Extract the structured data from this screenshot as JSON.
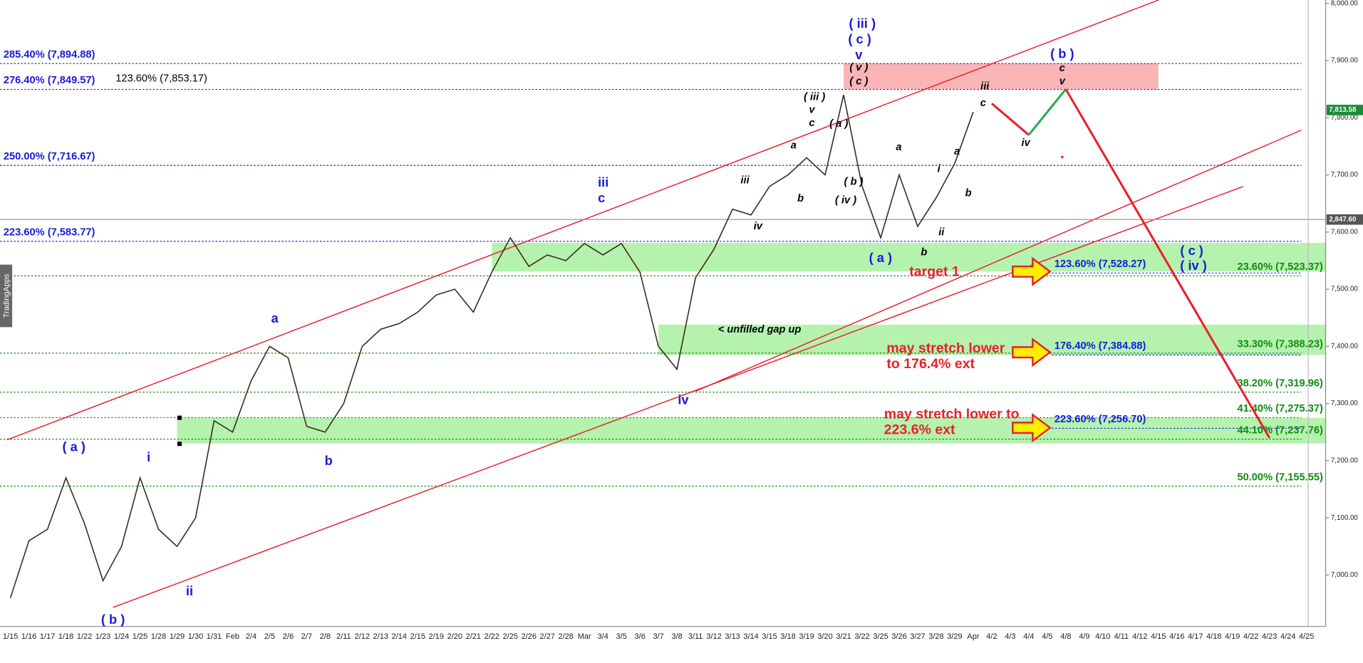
{
  "chart_data": {
    "type": "line",
    "categories": [
      "1/15",
      "1/16",
      "1/17",
      "1/18",
      "1/22",
      "1/23",
      "1/24",
      "1/25",
      "1/28",
      "1/29",
      "1/30",
      "1/31",
      "Feb",
      "2/4",
      "2/5",
      "2/6",
      "2/7",
      "2/8",
      "2/11",
      "2/12",
      "2/13",
      "2/14",
      "2/15",
      "2/19",
      "2/20",
      "2/21",
      "2/22",
      "2/25",
      "2/26",
      "2/27",
      "2/28",
      "Mar",
      "3/4",
      "3/5",
      "3/6",
      "3/7",
      "3/8",
      "3/11",
      "3/12",
      "3/13",
      "3/14",
      "3/15",
      "3/18",
      "3/19",
      "3/20",
      "3/21",
      "3/22",
      "3/25",
      "3/26",
      "3/27",
      "3/28",
      "3/29",
      "Apr",
      "4/2",
      "4/3",
      "4/4",
      "4/5",
      "4/8",
      "4/9",
      "4/10",
      "4/11",
      "4/12",
      "4/15",
      "4/16",
      "4/17",
      "4/18",
      "4/19",
      "4/22",
      "4/23",
      "4/24",
      "4/25"
    ],
    "series": [
      {
        "color": "#3a2a20",
        "values": [
          6960,
          7060,
          7080,
          7170,
          7090,
          6990,
          7050,
          7170,
          7080,
          7050,
          7100,
          7270,
          7250,
          7340,
          7400,
          7380,
          7260,
          7250,
          7300,
          7400,
          7430,
          7440,
          7460,
          7490,
          7500,
          7460,
          7530,
          7590,
          7540,
          7560,
          7550,
          7580,
          7560,
          7580,
          7530,
          7400,
          7360,
          7520,
          7570,
          7640,
          7630,
          7680,
          7700,
          7730,
          7700,
          7840,
          7680,
          7590,
          7700,
          7610,
          7660,
          7720,
          7810,
          null,
          null,
          null,
          null,
          null,
          null,
          null,
          null,
          null,
          null,
          null,
          null,
          null,
          null,
          null,
          null,
          null,
          null
        ]
      }
    ],
    "projections": [
      {
        "color": "#e8202a",
        "x": [
          "4/2",
          "4/4"
        ],
        "values": [
          7825,
          7770
        ]
      },
      {
        "color": "#22b14c",
        "x": [
          "4/4",
          "4/8"
        ],
        "values": [
          7770,
          7850
        ]
      },
      {
        "color": "#e8202a",
        "x": [
          "4/8",
          "4/23"
        ],
        "values": [
          7850,
          7240
        ]
      }
    ],
    "ylim": [
      6910,
      8006
    ],
    "yticks": [
      {
        "value": 7000,
        "label": "7,000.00"
      },
      {
        "value": 7100,
        "label": "7,100.00"
      },
      {
        "value": 7200,
        "label": "7,200.00"
      },
      {
        "value": 7300,
        "label": "7,300.00"
      },
      {
        "value": 7400,
        "label": "7,400.00"
      },
      {
        "value": 7500,
        "label": "7,500.00"
      },
      {
        "value": 7600,
        "label": "7,600.00"
      },
      {
        "value": 7700,
        "label": "7,700.00"
      },
      {
        "value": 7800,
        "label": "7,800.00"
      },
      {
        "value": 7900,
        "label": "7,900.00"
      },
      {
        "value": 8000,
        "label": "8,000.00"
      }
    ],
    "zones": [
      {
        "from": "2/22",
        "low": 7531,
        "high": 7581,
        "color": "#a8f0a0"
      },
      {
        "from": "3/7",
        "low": 7385,
        "high": 7438,
        "color": "#a8f0a0"
      },
      {
        "from": "1/29",
        "low": 7230,
        "high": 7275,
        "color": "#a8f0a0"
      },
      {
        "from": "3/21",
        "to": "4/15",
        "low": 7850,
        "high": 7895,
        "color": "#f8a8a8"
      }
    ],
    "levels_left": [
      {
        "label": "285.40% (7,894.88)",
        "value": 7894.88,
        "color": "#1a1adb"
      },
      {
        "label": "276.40% (7,849.57)",
        "value": 7849.57,
        "color": "#1a1adb"
      },
      {
        "label": "123.60% (7,853.17)",
        "value": 7853.17,
        "color": "#000000"
      },
      {
        "label": "250.00% (7,716.67)",
        "value": 7716.67,
        "color": "#1a1adb"
      },
      {
        "label": "223.60% (7,583.77)",
        "value": 7583.77,
        "color": "#1a1adb"
      }
    ],
    "levels_mid": [
      {
        "label": "123.60% (7,528.27)",
        "value": 7528.27,
        "color": "#1a1adb"
      },
      {
        "label": "176.40% (7,384.88)",
        "value": 7384.88,
        "color": "#1a1adb"
      },
      {
        "label": "223.60% (7,256.70)",
        "value": 7256.7,
        "color": "#1a1adb"
      }
    ],
    "levels_right": [
      {
        "label": "23.60% (7,523.37)",
        "value": 7523.37,
        "color": "#138a13"
      },
      {
        "label": "33.30% (7,388.23)",
        "value": 7388.23,
        "color": "#138a13"
      },
      {
        "label": "38.20% (7,319.96)",
        "value": 7319.96,
        "color": "#138a13"
      },
      {
        "label": "41.40% (7,275.37)",
        "value": 7275.37,
        "color": "#138a13"
      },
      {
        "label": "44.10% (7,237.76)",
        "value": 7237.76,
        "color": "#138a13"
      },
      {
        "label": "50.00% (7,155.55)",
        "value": 7155.55,
        "color": "#138a13"
      }
    ],
    "price_tags": [
      {
        "label": "7,813.58",
        "value": 7813.58,
        "color": "#1d8a3a"
      },
      {
        "label": "2,847.60",
        "color": "#555555"
      }
    ],
    "watermark": "TradingApps",
    "annotations": [
      {
        "text": "( iii )",
        "color": "#1a1adb"
      },
      {
        "text": "( c )",
        "color": "#1a1adb"
      },
      {
        "text": "v",
        "color": "#1a1adb"
      },
      {
        "text": "( v )",
        "color": "#000000"
      },
      {
        "text": "( c )",
        "color": "#000000"
      },
      {
        "text": "( iii )",
        "color": "#000000"
      },
      {
        "text": "v",
        "color": "#000000"
      },
      {
        "text": "c",
        "color": "#000000"
      },
      {
        "text": "( a )",
        "color": "#000000"
      },
      {
        "text": "a",
        "color": "#000000"
      },
      {
        "text": "( b )",
        "color": "#000000"
      },
      {
        "text": "( iv )",
        "color": "#000000"
      },
      {
        "text": "iii",
        "color": "#000000"
      },
      {
        "text": "b",
        "color": "#000000"
      },
      {
        "text": "iv",
        "color": "#000000"
      },
      {
        "text": "iii",
        "color": "#1a1adb"
      },
      {
        "text": "c",
        "color": "#1a1adb"
      },
      {
        "text": "( a )",
        "color": "#1a1adb"
      },
      {
        "text": "b",
        "color": "#000000"
      },
      {
        "text": "target 1",
        "color": "#e8202a"
      },
      {
        "text": "a",
        "color": "#000000"
      },
      {
        "text": "i",
        "color": "#000000"
      },
      {
        "text": "ii",
        "color": "#000000"
      },
      {
        "text": "a",
        "color": "#000000"
      },
      {
        "text": "b",
        "color": "#000000"
      },
      {
        "text": "iii",
        "color": "#000000"
      },
      {
        "text": "c",
        "color": "#000000"
      },
      {
        "text": "iv",
        "color": "#000000"
      },
      {
        "text": "( b )",
        "color": "#1a1adb"
      },
      {
        "text": "c",
        "color": "#000000"
      },
      {
        "text": "v",
        "color": "#000000"
      },
      {
        "text": "( c )",
        "color": "#1a1adb"
      },
      {
        "text": "( iv )",
        "color": "#1a1adb"
      },
      {
        "text": "a",
        "color": "#1a1adb"
      },
      {
        "text": "i",
        "color": "#1a1adb"
      },
      {
        "text": "ii",
        "color": "#1a1adb"
      },
      {
        "text": "( a )",
        "color": "#1a1adb"
      },
      {
        "text": "( b )",
        "color": "#1a1adb"
      },
      {
        "text": "b",
        "color": "#1a1adb"
      },
      {
        "text": "iv",
        "color": "#1a1adb"
      },
      {
        "text": "< unfilled gap up",
        "color": "#000000"
      },
      {
        "text": "may stretch lower",
        "color": "#e8202a"
      },
      {
        "text": "to 176.4% ext",
        "color": "#e8202a"
      },
      {
        "text": "may stretch lower to",
        "color": "#e8202a"
      },
      {
        "text": "223.6% ext",
        "color": "#e8202a"
      }
    ]
  }
}
